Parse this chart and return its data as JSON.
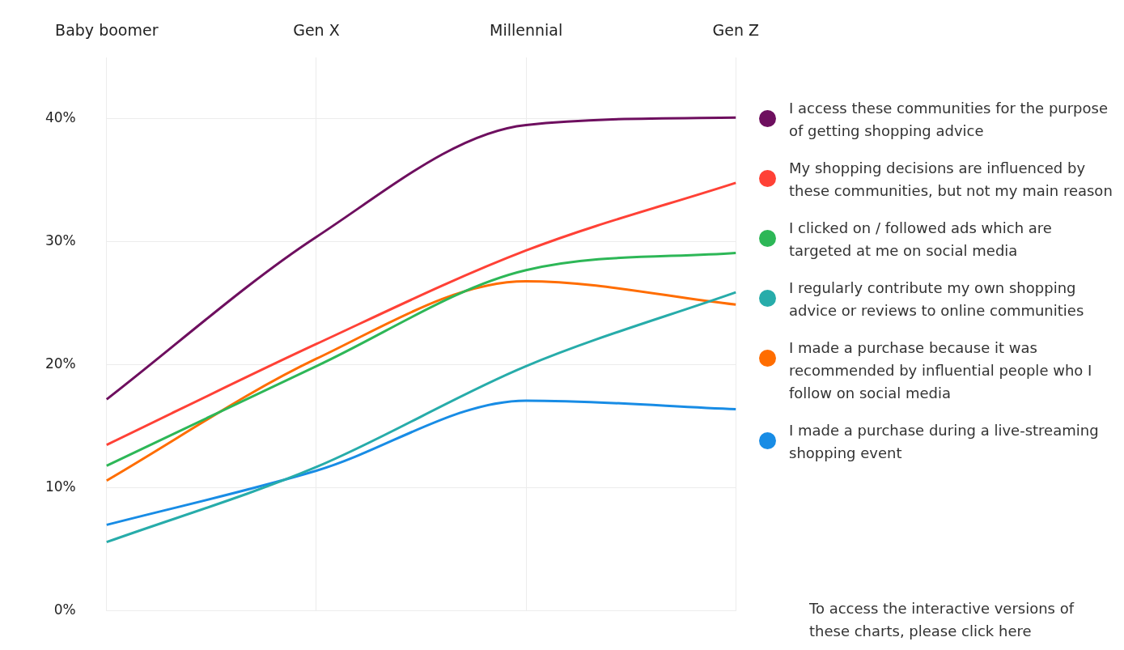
{
  "chart_data": {
    "type": "line",
    "categories": [
      "Baby boomer",
      "Gen X",
      "Millennial",
      "Gen Z"
    ],
    "series": [
      {
        "name": "I access these communities for the purpose of getting shopping advice",
        "color": "#6e0f5f",
        "values": [
          17.2,
          30.4,
          39.5,
          40.1
        ]
      },
      {
        "name": "My shopping decisions are influenced by these communities, but not my main reason",
        "color": "#ff4136",
        "values": [
          13.5,
          21.7,
          29.3,
          34.8
        ]
      },
      {
        "name": "I clicked on / followed ads which are targeted at me on social media",
        "color": "#2db757",
        "values": [
          11.8,
          19.9,
          27.7,
          29.1
        ]
      },
      {
        "name": "I regularly contribute my own shopping advice or reviews to online communities",
        "color": "#27acaa",
        "values": [
          5.6,
          11.7,
          19.9,
          25.9
        ]
      },
      {
        "name": "I made a purchase because it was recommended by influential people who I follow on social media",
        "color": "#ff6d00",
        "values": [
          10.6,
          20.5,
          26.8,
          24.9
        ]
      },
      {
        "name": "I made a purchase during a live-streaming shopping event",
        "color": "#188ce5",
        "values": [
          7.0,
          11.4,
          17.1,
          16.4
        ]
      }
    ],
    "ylim": [
      0,
      45
    ],
    "yticks": [
      {
        "value": 0,
        "label": "0%"
      },
      {
        "value": 10,
        "label": "10%"
      },
      {
        "value": 20,
        "label": "20%"
      },
      {
        "value": 30,
        "label": "30%"
      },
      {
        "value": 40,
        "label": "40%"
      }
    ],
    "grid": true,
    "legend": "right",
    "marker": "none",
    "line_style": "solid",
    "annotations": [
      "To access the interactive versions of these charts, please click here"
    ]
  }
}
